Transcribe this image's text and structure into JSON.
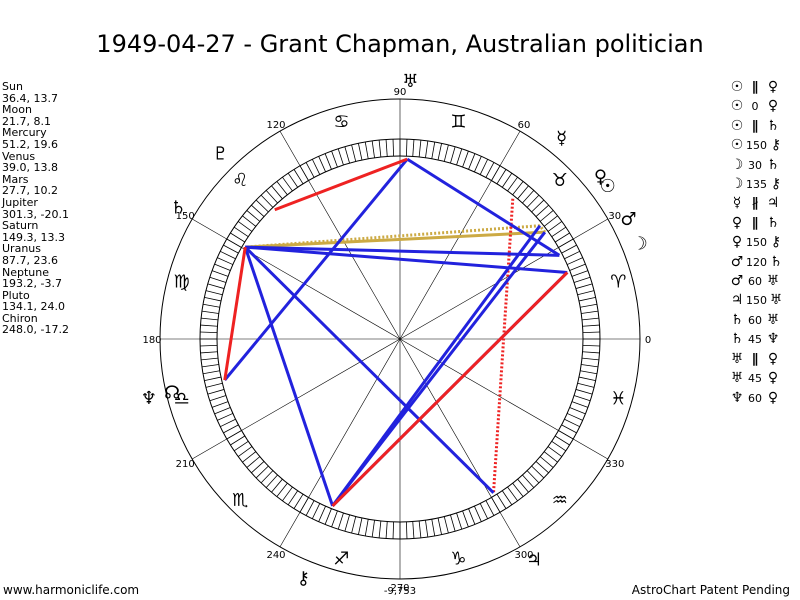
{
  "title": "1949-04-27 - Grant Chapman, Australian politician",
  "planets": [
    {
      "name": "Sun",
      "coords": "36.4, 13.7"
    },
    {
      "name": "Moon",
      "coords": "21.7, 8.1"
    },
    {
      "name": "Mercury",
      "coords": "51.2, 19.6"
    },
    {
      "name": "Venus",
      "coords": "39.0, 13.8"
    },
    {
      "name": "Mars",
      "coords": "27.7, 10.2"
    },
    {
      "name": "Jupiter",
      "coords": "301.3, -20.1"
    },
    {
      "name": "Saturn",
      "coords": "149.3, 13.3"
    },
    {
      "name": "Uranus",
      "coords": "87.7, 23.6"
    },
    {
      "name": "Neptune",
      "coords": "193.2, -3.7"
    },
    {
      "name": "Pluto",
      "coords": "134.1, 24.0"
    },
    {
      "name": "Chiron",
      "coords": "248.0, -17.2"
    }
  ],
  "aspects": [
    {
      "a": "☉",
      "asp": "∥",
      "b": "♀"
    },
    {
      "a": "☉",
      "asp": "0",
      "b": "♀"
    },
    {
      "a": "☉",
      "asp": "∥",
      "b": "♄"
    },
    {
      "a": "☉",
      "asp": "150",
      "b": "⚷"
    },
    {
      "a": "☽",
      "asp": "30",
      "b": "♄"
    },
    {
      "a": "☽",
      "asp": "135",
      "b": "⚷"
    },
    {
      "a": "☿",
      "asp": "∦",
      "b": "♃"
    },
    {
      "a": "♀",
      "asp": "∥",
      "b": "♄"
    },
    {
      "a": "♀",
      "asp": "150",
      "b": "⚷"
    },
    {
      "a": "♂",
      "asp": "120",
      "b": "♄"
    },
    {
      "a": "♂",
      "asp": "60",
      "b": "♅"
    },
    {
      "a": "♃",
      "asp": "150",
      "b": "♅"
    },
    {
      "a": "♄",
      "asp": "60",
      "b": "♅"
    },
    {
      "a": "♄",
      "asp": "45",
      "b": "♆"
    },
    {
      "a": "♅",
      "asp": "∥",
      "b": "♀"
    },
    {
      "a": "♅",
      "asp": "45",
      "b": "♀"
    },
    {
      "a": "♆",
      "asp": "60",
      "b": "♀"
    }
  ],
  "degree_labels": [
    "0",
    "30",
    "60",
    "90",
    "120",
    "150",
    "180",
    "210",
    "240",
    "270",
    "300",
    "330"
  ],
  "zodiac": [
    {
      "glyph": "♈",
      "lon": 15
    },
    {
      "glyph": "♉",
      "lon": 45
    },
    {
      "glyph": "♊",
      "lon": 75
    },
    {
      "glyph": "♋",
      "lon": 105
    },
    {
      "glyph": "♌",
      "lon": 135
    },
    {
      "glyph": "♍",
      "lon": 165
    },
    {
      "glyph": "♎",
      "lon": 195
    },
    {
      "glyph": "♏",
      "lon": 225
    },
    {
      "glyph": "♐",
      "lon": 255
    },
    {
      "glyph": "♑",
      "lon": 285
    },
    {
      "glyph": "♒",
      "lon": 315
    },
    {
      "glyph": "♓",
      "lon": 345
    }
  ],
  "bodies": [
    {
      "name": "Sun",
      "glyph": "☉",
      "lon": 36.4
    },
    {
      "name": "Moon",
      "glyph": "☽",
      "lon": 21.7
    },
    {
      "name": "Mercury",
      "glyph": "☿",
      "lon": 51.2
    },
    {
      "name": "Venus",
      "glyph": "♀",
      "lon": 39.0
    },
    {
      "name": "Mars",
      "glyph": "♂",
      "lon": 27.7
    },
    {
      "name": "Jupiter",
      "glyph": "♃",
      "lon": 301.3
    },
    {
      "name": "Saturn",
      "glyph": "♄",
      "lon": 149.3
    },
    {
      "name": "Uranus",
      "glyph": "♅",
      "lon": 87.7
    },
    {
      "name": "Neptune",
      "glyph": "♆",
      "lon": 193.2
    },
    {
      "name": "Pluto",
      "glyph": "♇",
      "lon": 134.1
    },
    {
      "name": "Chiron",
      "glyph": "⚷",
      "lon": 248.0
    }
  ],
  "extra_points": [
    {
      "name": "node",
      "glyph": "☊",
      "lon": 193.2
    }
  ],
  "aspect_lines": [
    {
      "from": 36.4,
      "to": 39.0,
      "color": "#ccaa44",
      "style": "dotted"
    },
    {
      "from": 36.4,
      "to": 149.3,
      "color": "#ccaa44",
      "style": "solid"
    },
    {
      "from": 39.0,
      "to": 149.3,
      "color": "#ccaa44",
      "style": "dotted"
    },
    {
      "from": 51.2,
      "to": 301.3,
      "color": "#ee2222",
      "style": "dotted"
    },
    {
      "from": 36.4,
      "to": 248.0,
      "color": "#2222dd",
      "style": "solid"
    },
    {
      "from": 21.7,
      "to": 149.3,
      "color": "#2222dd",
      "style": "solid"
    },
    {
      "from": 21.7,
      "to": 248.0,
      "color": "#2222dd",
      "style": "solid"
    },
    {
      "from": 39.0,
      "to": 248.0,
      "color": "#2222dd",
      "style": "solid"
    },
    {
      "from": 27.7,
      "to": 149.3,
      "color": "#2222dd",
      "style": "solid"
    },
    {
      "from": 27.7,
      "to": 87.7,
      "color": "#2222dd",
      "style": "solid"
    },
    {
      "from": 301.3,
      "to": 149.3,
      "color": "#2222dd",
      "style": "solid"
    },
    {
      "from": 149.3,
      "to": 248.0,
      "color": "#2222dd",
      "style": "solid"
    },
    {
      "from": 87.7,
      "to": 193.2,
      "color": "#2222dd",
      "style": "solid"
    },
    {
      "from": 21.7,
      "to": 248.0,
      "color": "#ee2222",
      "style": "solid"
    },
    {
      "from": 87.7,
      "to": 134.1,
      "color": "#ee2222",
      "style": "solid"
    },
    {
      "from": 149.3,
      "to": 193.2,
      "color": "#ee2222",
      "style": "solid"
    }
  ],
  "center_value": "-9,753",
  "footer": {
    "left": "www.harmoniclife.com",
    "right": "AstroChart Patent Pending"
  }
}
